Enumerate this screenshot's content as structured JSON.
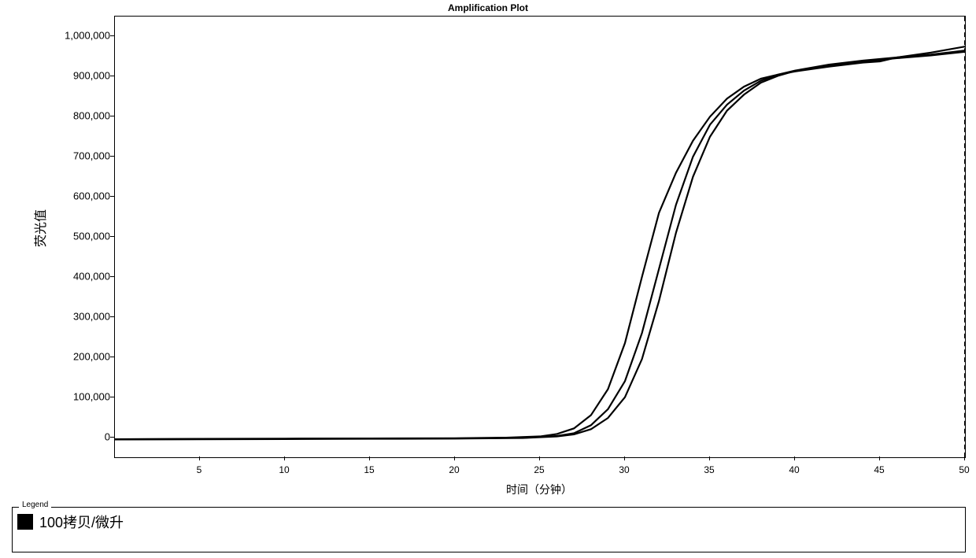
{
  "chart": {
    "type": "line",
    "title": "Amplification Plot",
    "title_fontsize": 12,
    "xlabel": "时间（分钟）",
    "ylabel": "荧光值",
    "label_fontsize": 14,
    "background_color": "#ffffff",
    "border_color": "#000000",
    "tick_fontsize": 12,
    "tick_color": "#000000",
    "line_color": "#000000",
    "line_width": 2.2,
    "xlim": [
      0,
      50
    ],
    "ylim": [
      -50000,
      1050000
    ],
    "xticks": [
      5,
      10,
      15,
      20,
      25,
      30,
      35,
      40,
      45,
      50
    ],
    "yticks": [
      0,
      100000,
      200000,
      300000,
      400000,
      500000,
      600000,
      700000,
      800000,
      900000,
      1000000
    ],
    "ytick_labels": [
      "0",
      "100,000",
      "200,000",
      "300,000",
      "400,000",
      "500,000",
      "600,000",
      "700,000",
      "800,000",
      "900,000",
      "1,000,000"
    ],
    "series": [
      {
        "name": "replicate-1",
        "x": [
          0,
          5,
          10,
          15,
          20,
          23,
          25,
          26,
          27,
          28,
          29,
          30,
          31,
          32,
          33,
          34,
          35,
          36,
          37,
          38,
          39,
          40,
          42,
          44,
          45,
          46,
          48,
          50
        ],
        "y": [
          -5000,
          -4000,
          -3500,
          -3000,
          -2500,
          -1000,
          2000,
          8000,
          22000,
          55000,
          120000,
          235000,
          400000,
          560000,
          660000,
          740000,
          800000,
          845000,
          875000,
          895000,
          905000,
          913000,
          925000,
          935000,
          938000,
          948000,
          960000,
          975000
        ]
      },
      {
        "name": "replicate-2",
        "x": [
          0,
          5,
          10,
          15,
          20,
          24,
          26,
          27,
          28,
          29,
          30,
          31,
          32,
          33,
          34,
          35,
          36,
          37,
          38,
          39,
          40,
          42,
          44,
          46,
          48,
          50
        ],
        "y": [
          -5000,
          -4500,
          -4000,
          -3500,
          -3000,
          -1500,
          3000,
          10000,
          30000,
          70000,
          140000,
          260000,
          420000,
          580000,
          700000,
          780000,
          830000,
          865000,
          890000,
          905000,
          915000,
          930000,
          940000,
          948000,
          955000,
          965000
        ]
      },
      {
        "name": "replicate-3",
        "x": [
          0,
          5,
          10,
          15,
          20,
          24,
          26,
          27,
          28,
          29,
          30,
          31,
          32,
          33,
          34,
          35,
          36,
          37,
          38,
          39,
          40,
          42,
          44,
          46,
          48,
          50
        ],
        "y": [
          -5500,
          -5000,
          -4500,
          -4000,
          -3500,
          -2000,
          2000,
          7000,
          20000,
          48000,
          100000,
          195000,
          340000,
          510000,
          650000,
          750000,
          815000,
          855000,
          885000,
          902000,
          914000,
          928000,
          938000,
          946000,
          953000,
          962000
        ]
      }
    ],
    "legend": {
      "title": "Legend",
      "entries": [
        {
          "swatch_color": "#000000",
          "label": "100拷贝/微升"
        }
      ],
      "title_fontsize": 10,
      "label_fontsize": 18,
      "border_color": "#000000"
    }
  }
}
